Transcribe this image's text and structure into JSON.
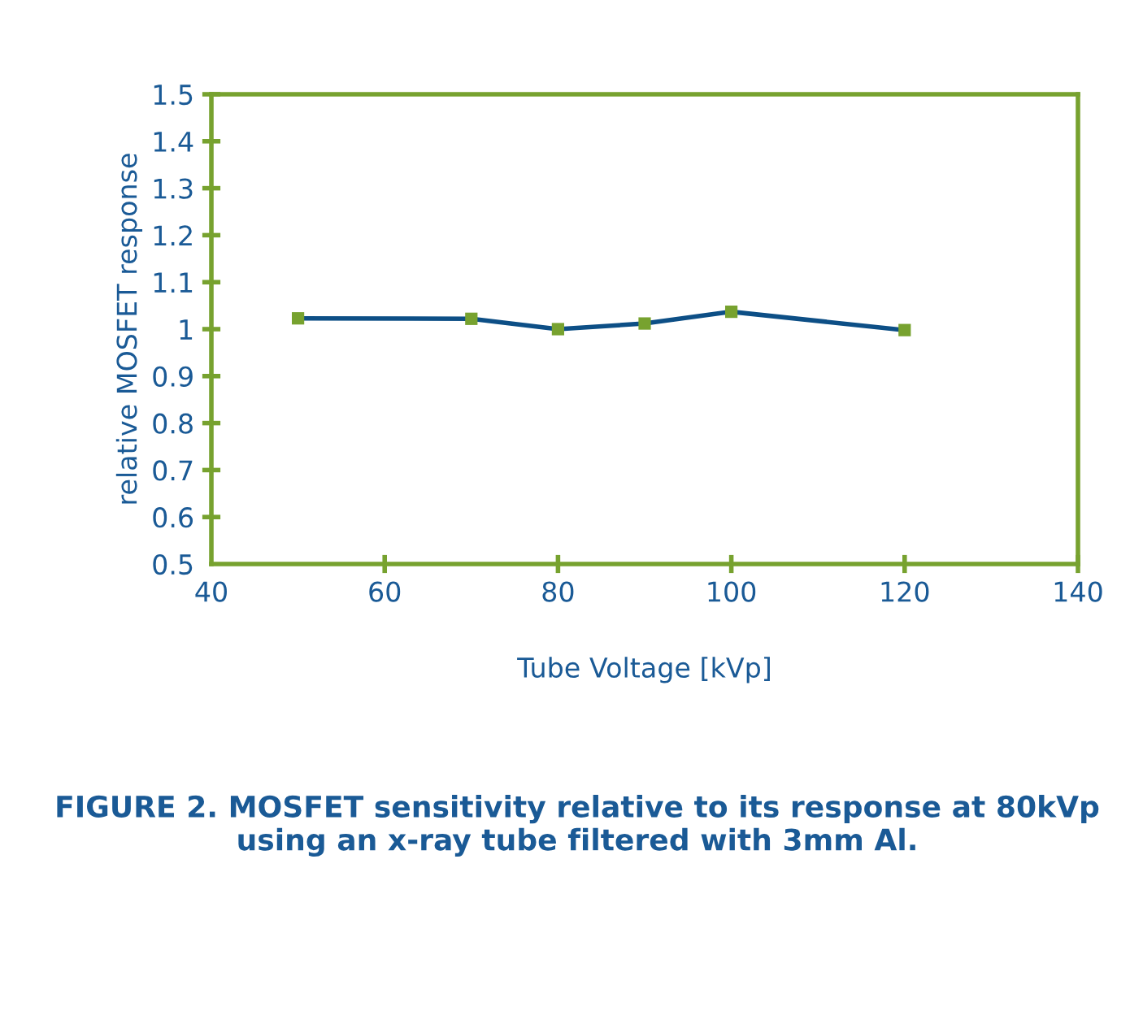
{
  "chart_data": {
    "type": "line",
    "xlabel": "Tube Voltage [kVp]",
    "ylabel": "relative MOSFET response",
    "x": [
      50,
      70,
      80,
      90,
      100,
      120
    ],
    "series": [
      {
        "color": "#0d4f86",
        "colors": [
          "#77a22f",
          "#77a22f",
          "#77a22f",
          "#77a22f",
          "#77a22f",
          "#77a22f"
        ],
        "values": [
          1.023,
          1.022,
          1.0,
          1.012,
          1.037,
          0.998
        ]
      }
    ],
    "xlim": [
      40,
      140
    ],
    "xticks": [
      40,
      60,
      80,
      100,
      120,
      140
    ],
    "ylim": [
      0.5,
      1.5
    ],
    "yticks": [
      0.5,
      0.6,
      0.7,
      0.8,
      0.9,
      1,
      1.1,
      1.2,
      1.3,
      1.4,
      1.5
    ],
    "marker": "square",
    "line_style": "solid",
    "grid": false,
    "legend": false,
    "annotations": [
      "FIGURE 2. MOSFET sensitivity relative to its response at 80kVp using an x-ray tube filtered with 3mm Al."
    ]
  }
}
